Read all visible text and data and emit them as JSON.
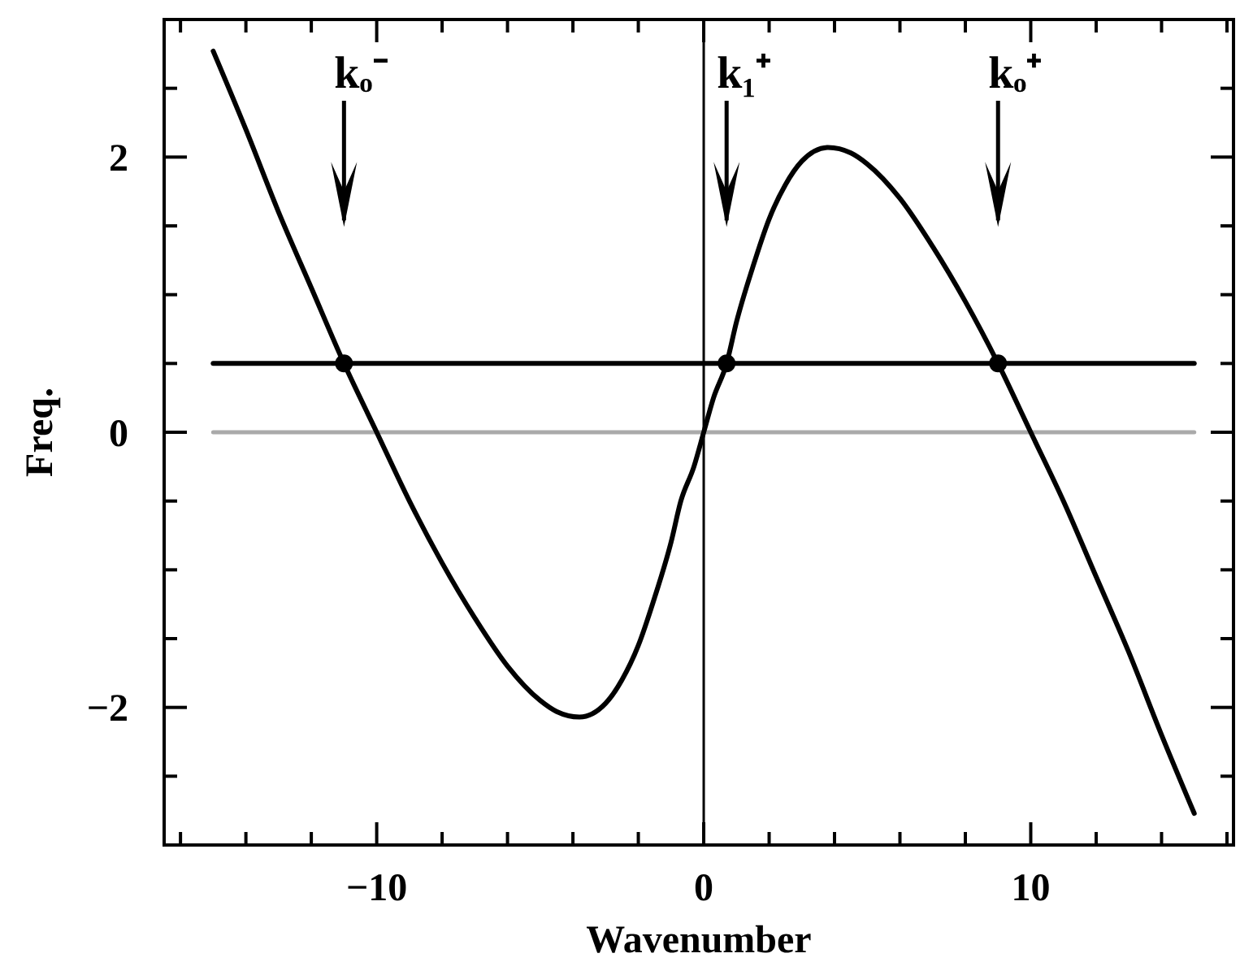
{
  "chart_data": {
    "type": "line",
    "xlabel": "Wavenumber",
    "ylabel": "Freq.",
    "xlim": [
      -16.5,
      16.2
    ],
    "ylim": [
      -3,
      3
    ],
    "xticks": [
      {
        "value": -16,
        "label": null
      },
      {
        "value": -14,
        "label": null
      },
      {
        "value": -12,
        "label": null
      },
      {
        "value": -10,
        "label": "−10"
      },
      {
        "value": -8,
        "label": null
      },
      {
        "value": -6,
        "label": null
      },
      {
        "value": -4,
        "label": null
      },
      {
        "value": -2,
        "label": null
      },
      0,
      {
        "value": 2,
        "label": null
      },
      {
        "value": 4,
        "label": null
      },
      {
        "value": 6,
        "label": null
      },
      {
        "value": 8,
        "label": null
      },
      10,
      {
        "value": 12,
        "label": null
      },
      {
        "value": 14,
        "label": null
      },
      {
        "value": 16,
        "label": null
      }
    ],
    "yticks": [
      {
        "value": -3,
        "label": null
      },
      {
        "value": -2.5,
        "label": null
      },
      {
        "value": -2,
        "label": "−2"
      },
      {
        "value": -1.5,
        "label": null
      },
      {
        "value": -1,
        "label": null
      },
      {
        "value": -0.5,
        "label": null
      },
      0,
      {
        "value": 0.5,
        "label": null
      },
      {
        "value": 1,
        "label": null
      },
      {
        "value": 1.5,
        "label": null
      },
      2,
      {
        "value": 2.5,
        "label": null
      },
      {
        "value": 3,
        "label": null
      }
    ],
    "grid": false,
    "marker": "none",
    "series": [
      {
        "color": "#aaaaaa",
        "x": [
          -15,
          15
        ],
        "values": [
          0,
          0
        ]
      },
      {
        "color": "#000000",
        "x": [
          -15,
          15
        ],
        "values": [
          0.5,
          0.5
        ]
      },
      {
        "color": "#000000",
        "x": [
          -15,
          -14,
          -13,
          -12,
          -11,
          -10,
          -9,
          -8,
          -7,
          -6,
          -5,
          -4.5,
          -3.8,
          -3,
          -2.5,
          -2,
          -1.5,
          -1,
          -0.7,
          -0.3,
          0,
          0.3,
          0.7,
          1,
          1.5,
          2,
          2.5,
          3,
          3.8,
          4.5,
          5,
          6,
          7,
          8,
          9,
          10,
          11,
          12,
          13,
          14,
          15
        ],
        "values": [
          2.77,
          2.2,
          1.6,
          1.05,
          0.5,
          0,
          -0.5,
          -0.95,
          -1.35,
          -1.7,
          -1.95,
          -2.03,
          -2.07,
          -1.97,
          -1.8,
          -1.55,
          -1.2,
          -0.8,
          -0.5,
          -0.25,
          0,
          0.25,
          0.5,
          0.8,
          1.2,
          1.55,
          1.8,
          1.97,
          2.07,
          2.03,
          1.95,
          1.7,
          1.35,
          0.95,
          0.5,
          0,
          -0.5,
          -1.05,
          -1.6,
          -2.2,
          -2.77
        ]
      },
      {
        "type": "scatter",
        "color": "#000000",
        "marker": "circle",
        "x": [
          -11,
          0.7,
          9
        ],
        "values": [
          0.5,
          0.5,
          0.5
        ]
      }
    ],
    "ref_lines": [
      {
        "axis": "x",
        "value": 0,
        "color": "#000000"
      }
    ],
    "annotations": [
      "kₒ⁻",
      "k₁⁺",
      "kₒ⁺"
    ]
  }
}
